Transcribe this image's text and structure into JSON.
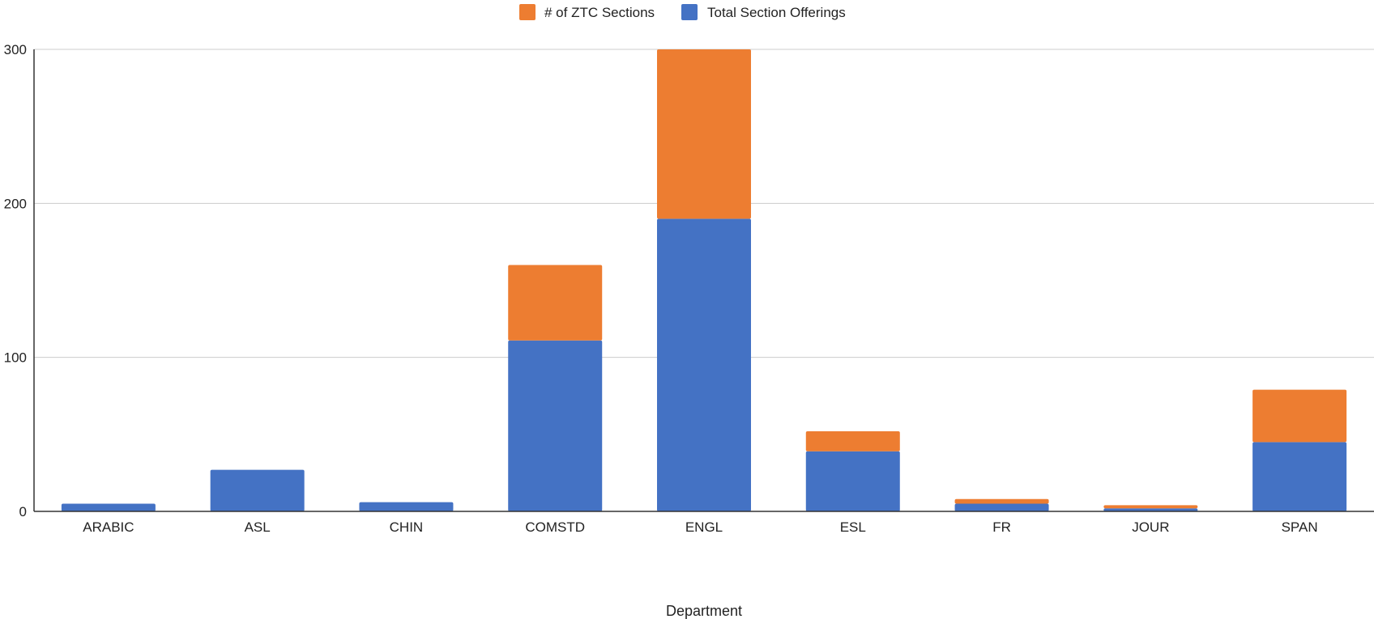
{
  "chart_data": {
    "type": "bar",
    "stacked": true,
    "title": "",
    "xlabel": "Department",
    "ylabel": "",
    "ylim": [
      0,
      300
    ],
    "yticks": [
      0,
      100,
      200,
      300
    ],
    "grid": true,
    "legend_position": "top",
    "categories": [
      "ARABIC",
      "ASL",
      "CHIN",
      "COMSTD",
      "ENGL",
      "ESL",
      "FR",
      "JOUR",
      "SPAN"
    ],
    "series": [
      {
        "name": "Total Section Offerings",
        "color": "#4472C4",
        "values": [
          5,
          27,
          6,
          111,
          190,
          39,
          5,
          2,
          45
        ]
      },
      {
        "name": "# of ZTC Sections",
        "color": "#ED7D31",
        "values": [
          0,
          0,
          0,
          49,
          110,
          13,
          3,
          2,
          34
        ]
      }
    ],
    "legend_order": [
      "# of ZTC Sections",
      "Total Section Offerings"
    ]
  }
}
